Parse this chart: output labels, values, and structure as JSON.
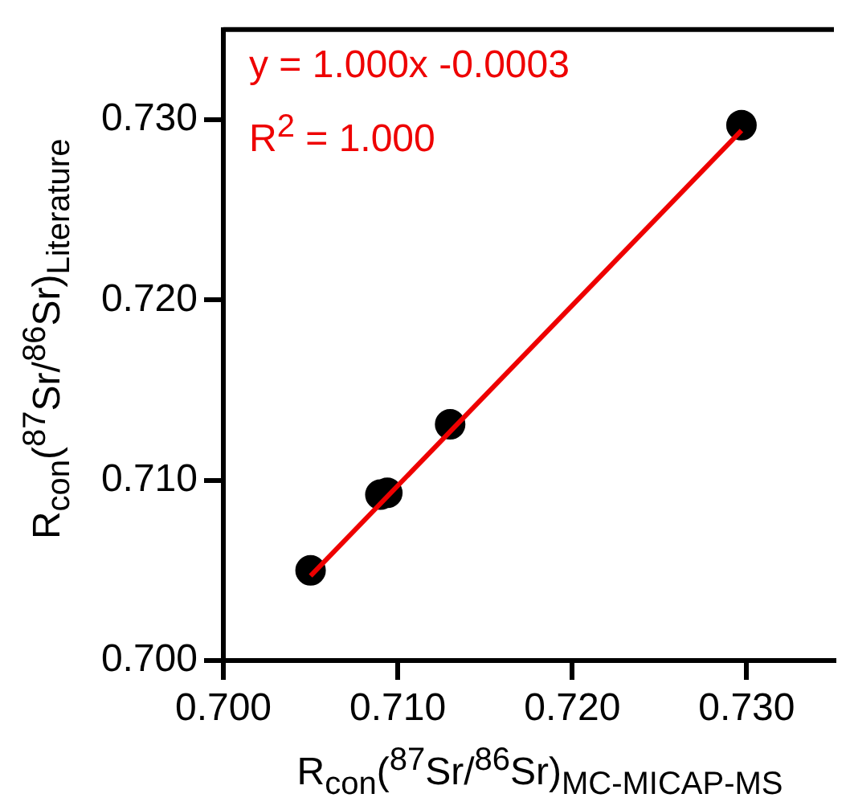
{
  "chart_data": {
    "type": "scatter",
    "xlabel": "R$_{con}$($^{87}$Sr/$^{86}$Sr)$_{MC-MICAP-MS}$",
    "ylabel": "R$_{con}$($^{87}$Sr/$^{86}$Sr)$_{Literature}$",
    "annotations": [
      "y = 1.000x -0.0003",
      "R$^{2}$ = 1.000"
    ],
    "xlim": [
      0.7,
      0.735
    ],
    "ylim": [
      0.7,
      0.735
    ],
    "xticks": [
      {
        "value": 0.7,
        "label": "0.700"
      },
      {
        "value": 0.71,
        "label": "0.710"
      },
      {
        "value": 0.72,
        "label": "0.720"
      },
      {
        "value": 0.73,
        "label": "0.730"
      }
    ],
    "yticks": [
      {
        "value": 0.7,
        "label": "0.700"
      },
      {
        "value": 0.71,
        "label": "0.710"
      },
      {
        "value": 0.72,
        "label": "0.720"
      },
      {
        "value": 0.73,
        "label": "0.730"
      }
    ],
    "grid": false,
    "legend": false,
    "series": [
      {
        "type": "line",
        "color": "#ee0000",
        "marker": "none",
        "line_style": "solid",
        "x": [
          0.705,
          0.7297
        ],
        "values": [
          0.7047,
          0.7294
        ]
      },
      {
        "color": "#000000",
        "marker": "circle",
        "x": [
          0.705,
          0.709,
          0.7094,
          0.713,
          0.7297
        ],
        "values": [
          0.705,
          0.7092,
          0.7093,
          0.7131,
          0.7297
        ]
      }
    ]
  }
}
